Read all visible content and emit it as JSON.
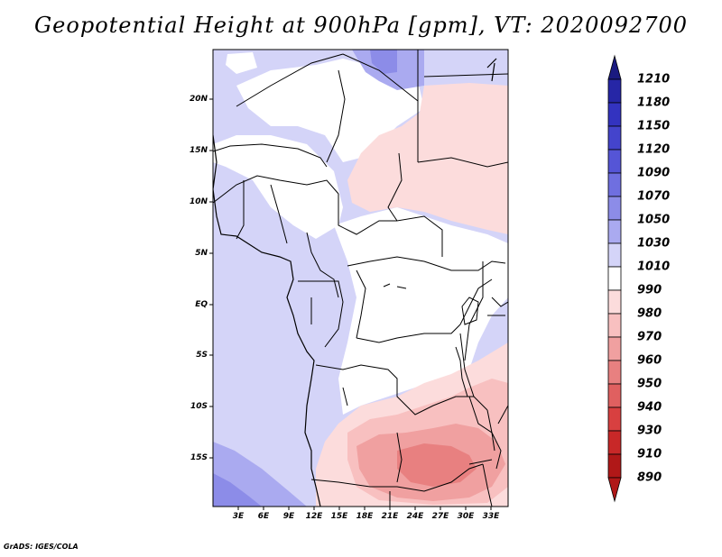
{
  "title": "Geopotential Height at 900hPa [gpm], VT: 2020092700",
  "credit": "GrADS: IGES/COLA",
  "lat_labels": [
    "20N",
    "15N",
    "10N",
    "5N",
    "EQ",
    "5S",
    "10S",
    "15S"
  ],
  "lon_labels": [
    "3E",
    "6E",
    "9E",
    "12E",
    "15E",
    "18E",
    "21E",
    "24E",
    "27E",
    "30E",
    "33E"
  ],
  "colorbar": {
    "levels": [
      "1210",
      "1180",
      "1150",
      "1120",
      "1090",
      "1070",
      "1050",
      "1030",
      "1010",
      "990",
      "980",
      "970",
      "960",
      "950",
      "940",
      "930",
      "910",
      "890"
    ],
    "colors": [
      "#1a1a80",
      "#2626a6",
      "#3333c0",
      "#4444cc",
      "#5555d6",
      "#6f6fe0",
      "#8c8ce8",
      "#aaaaf0",
      "#d4d4f8",
      "#ffffff",
      "#fcdcdc",
      "#f8c0c0",
      "#f0a0a0",
      "#e88080",
      "#e06060",
      "#d84040",
      "#c82828",
      "#b01818"
    ]
  },
  "map_fields": {
    "background_level": "1010",
    "regions": [
      {
        "level": "1030",
        "area": "west-coast-south"
      },
      {
        "level": "1030",
        "area": "north-sahara"
      },
      {
        "level": "990",
        "area": "central-congo-basin"
      },
      {
        "level": "980",
        "area": "sudan-east"
      },
      {
        "level": "970",
        "area": "zambia-east"
      },
      {
        "level": "960",
        "area": "zambia-core"
      }
    ]
  }
}
